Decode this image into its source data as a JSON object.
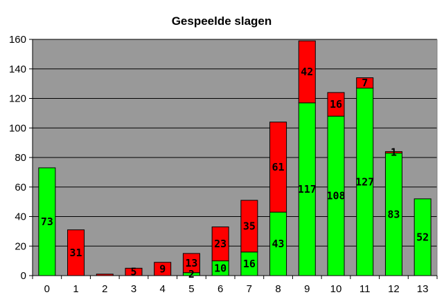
{
  "chart_data": {
    "type": "bar",
    "stacked": true,
    "title": "Gespeelde slagen",
    "categories": [
      "0",
      "1",
      "2",
      "3",
      "4",
      "5",
      "6",
      "7",
      "8",
      "9",
      "10",
      "11",
      "12",
      "13"
    ],
    "series": [
      {
        "color": "#00ff00",
        "values": [
          73,
          0,
          0,
          0,
          0,
          2,
          10,
          16,
          43,
          117,
          108,
          127,
          83,
          52
        ]
      },
      {
        "color": "#ff0000",
        "values": [
          0,
          31,
          1,
          5,
          9,
          13,
          23,
          35,
          61,
          42,
          16,
          7,
          1,
          0
        ]
      }
    ],
    "data_labels": [
      [
        "73",
        "",
        "",
        "",
        "",
        "2",
        "10",
        "16",
        "43",
        "117",
        "108",
        "127",
        "83",
        "52"
      ],
      [
        "",
        "31",
        "",
        "5",
        "9",
        "13",
        "23",
        "35",
        "61",
        "42",
        "16",
        "7",
        "1",
        ""
      ]
    ],
    "ylim": [
      0,
      160
    ],
    "yticks": [
      "0",
      "20",
      "40",
      "60",
      "80",
      "100",
      "120",
      "140",
      "160"
    ],
    "plot_background": "#999999",
    "grid": true,
    "legend": "none"
  }
}
